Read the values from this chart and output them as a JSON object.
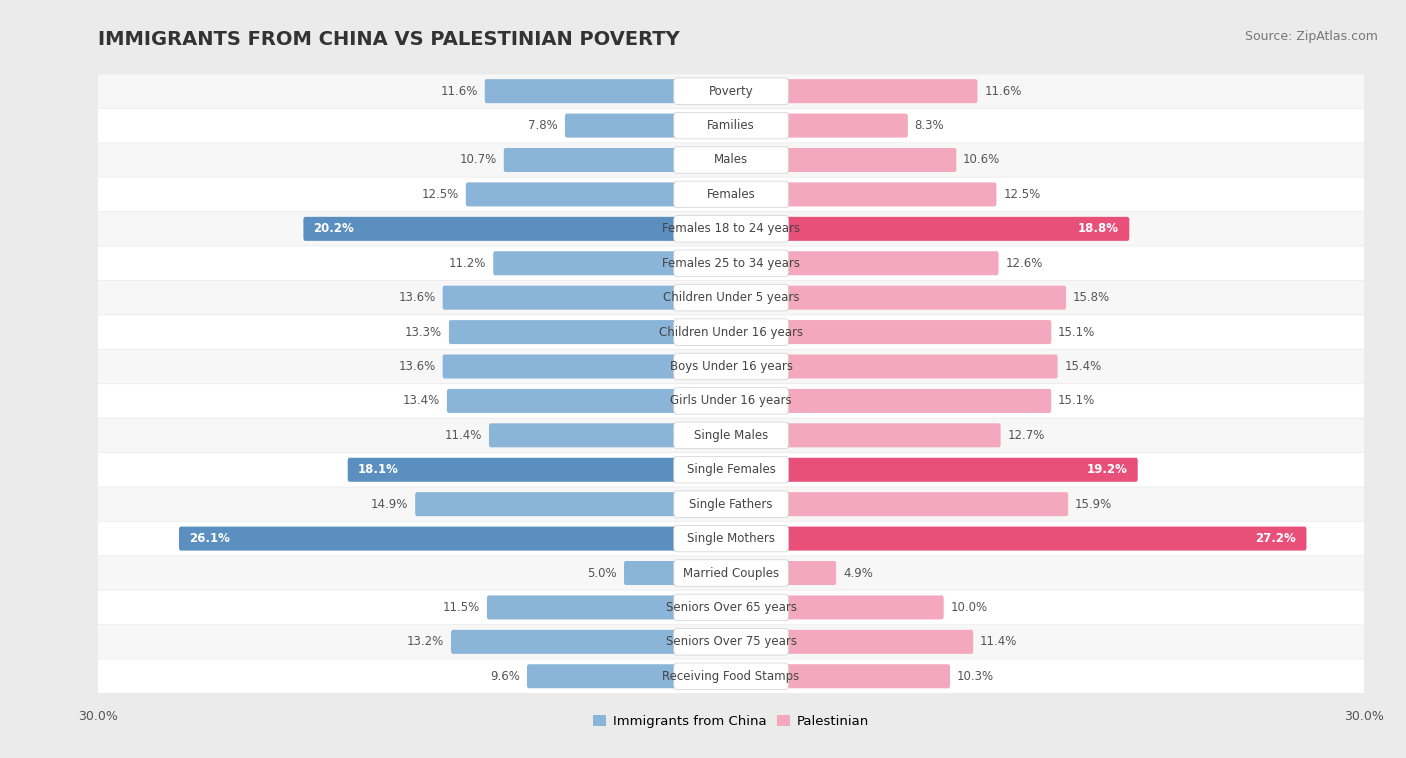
{
  "title": "IMMIGRANTS FROM CHINA VS PALESTINIAN POVERTY",
  "source": "Source: ZipAtlas.com",
  "categories": [
    "Poverty",
    "Families",
    "Males",
    "Females",
    "Females 18 to 24 years",
    "Females 25 to 34 years",
    "Children Under 5 years",
    "Children Under 16 years",
    "Boys Under 16 years",
    "Girls Under 16 years",
    "Single Males",
    "Single Females",
    "Single Fathers",
    "Single Mothers",
    "Married Couples",
    "Seniors Over 65 years",
    "Seniors Over 75 years",
    "Receiving Food Stamps"
  ],
  "china_values": [
    11.6,
    7.8,
    10.7,
    12.5,
    20.2,
    11.2,
    13.6,
    13.3,
    13.6,
    13.4,
    11.4,
    18.1,
    14.9,
    26.1,
    5.0,
    11.5,
    13.2,
    9.6
  ],
  "palestinian_values": [
    11.6,
    8.3,
    10.6,
    12.5,
    18.8,
    12.6,
    15.8,
    15.1,
    15.4,
    15.1,
    12.7,
    19.2,
    15.9,
    27.2,
    4.9,
    10.0,
    11.4,
    10.3
  ],
  "china_color_normal": "#8ab4d8",
  "china_color_highlight": "#5a8fbf",
  "palestinian_color_normal": "#f4a8bf",
  "palestinian_color_highlight": "#e8507a",
  "highlight_rows": [
    4,
    11,
    13
  ],
  "max_val": 30.0,
  "background_color": "#ebebeb",
  "row_bg_even": "#f7f7f7",
  "row_bg_odd": "#ffffff",
  "title_fontsize": 14,
  "source_fontsize": 9,
  "bar_label_fontsize": 8.5,
  "category_fontsize": 8.5,
  "axis_label_fontsize": 9
}
